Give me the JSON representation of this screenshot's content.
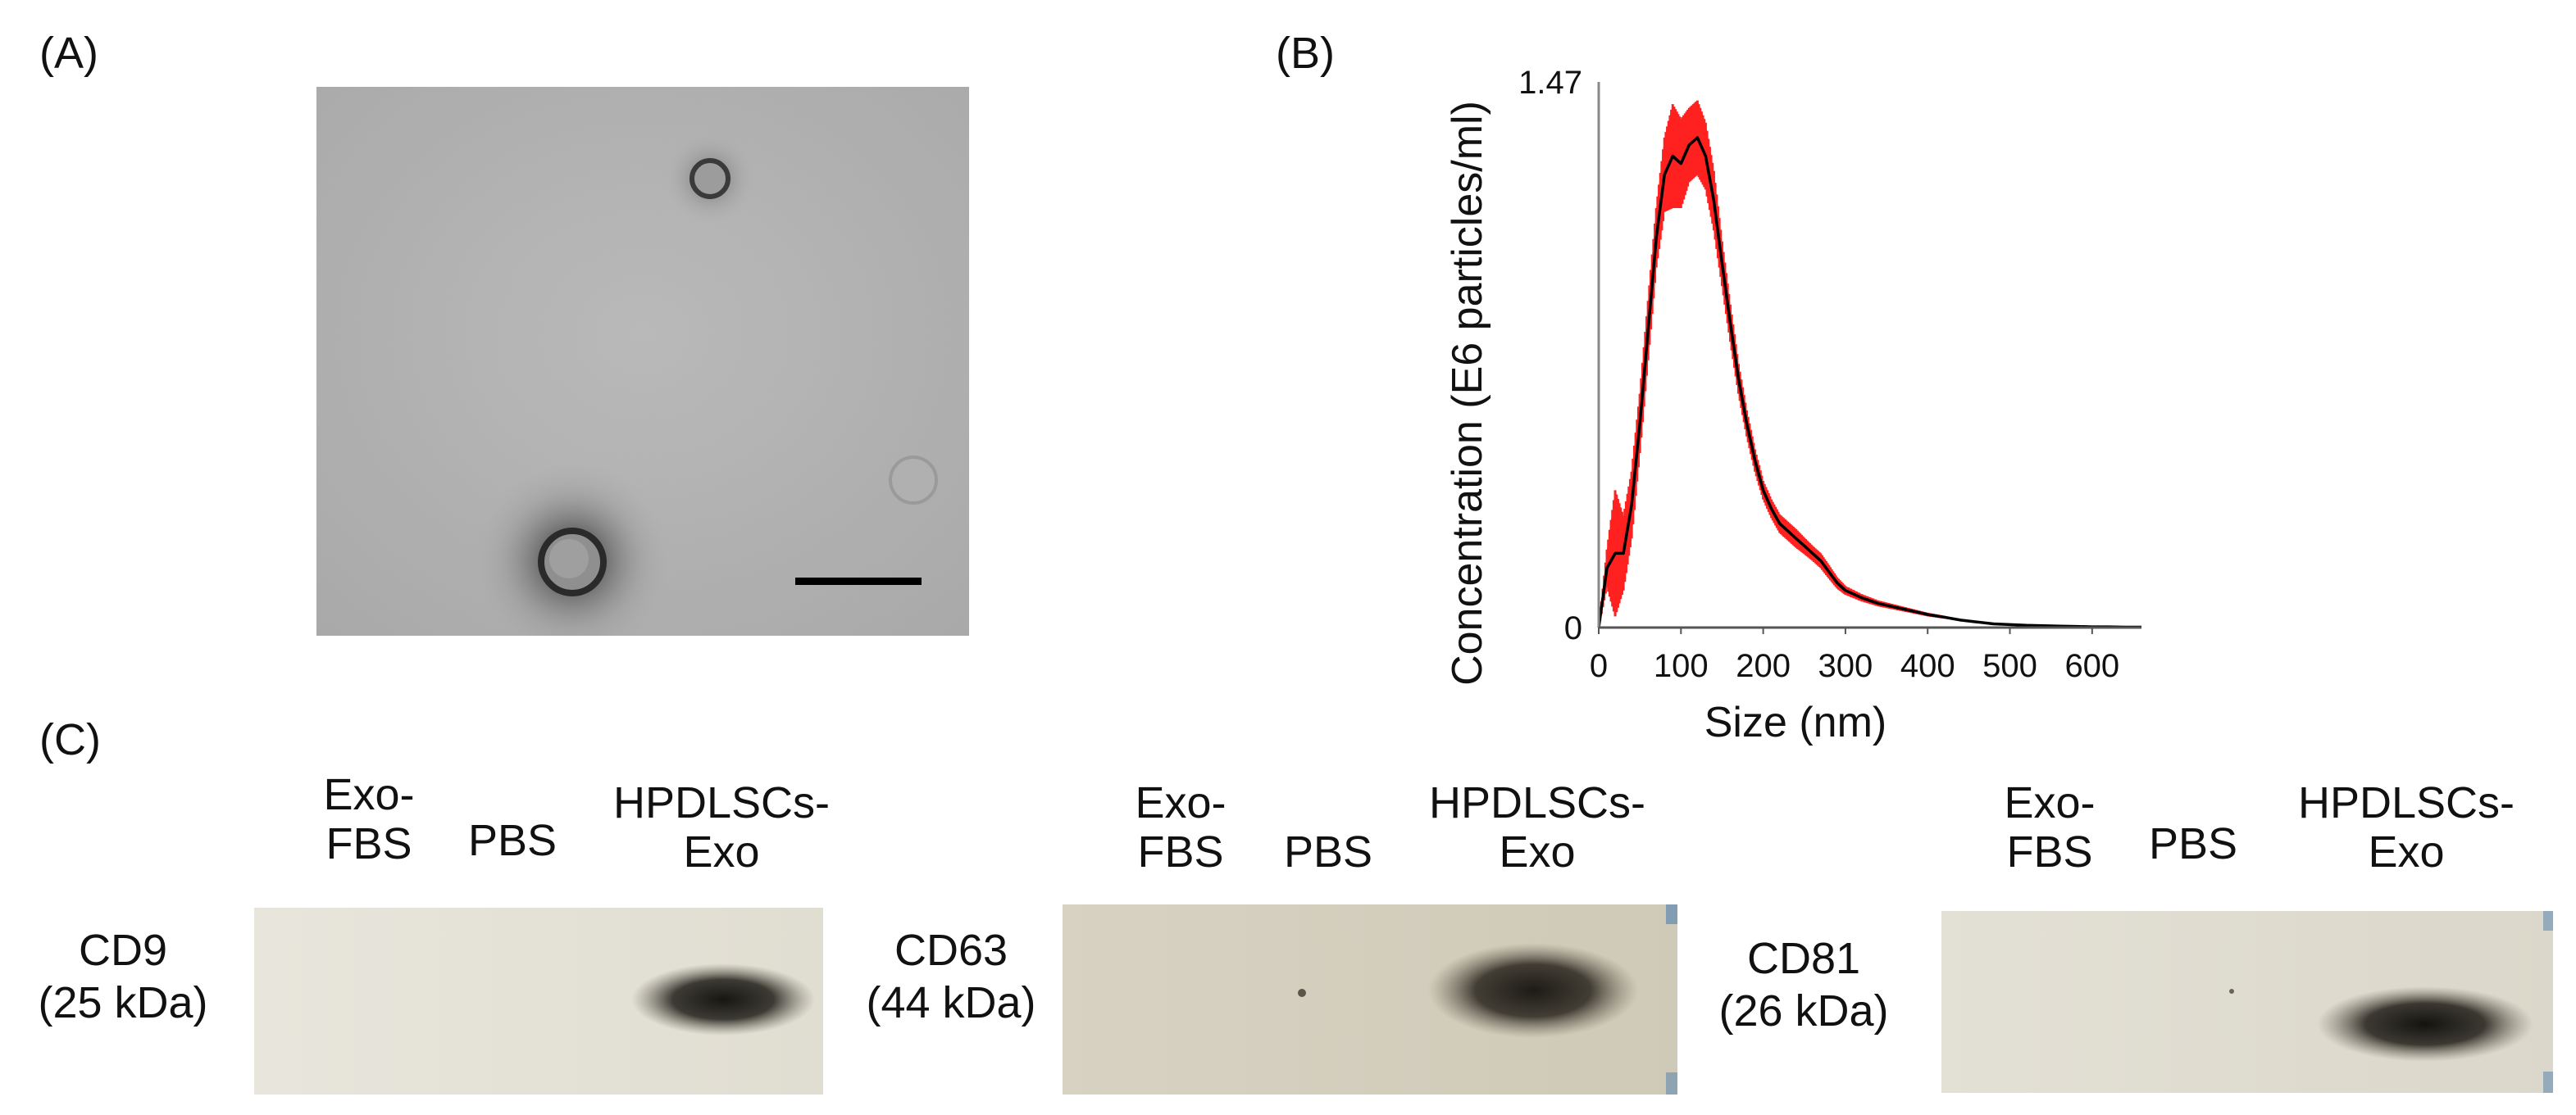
{
  "panels": {
    "a": "(A)",
    "b": "(B)",
    "c": "(C)"
  },
  "chart_data": {
    "type": "line",
    "xlabel": "Size (nm)",
    "ylabel": "Concentration (E6 particles/ml)",
    "xlim": [
      0,
      660
    ],
    "ylim": [
      0,
      1.47
    ],
    "x_ticks": [
      "0",
      "100",
      "200",
      "300",
      "400",
      "500",
      "600"
    ],
    "y_ticks": [
      "0",
      "1.47"
    ],
    "grid": false,
    "series": [
      {
        "name": "",
        "color": "#000000",
        "x": [
          0,
          10,
          20,
          30,
          40,
          50,
          60,
          70,
          80,
          90,
          100,
          110,
          120,
          130,
          140,
          150,
          160,
          170,
          180,
          190,
          200,
          210,
          220,
          230,
          240,
          250,
          260,
          270,
          280,
          290,
          300,
          320,
          340,
          360,
          380,
          400,
          420,
          440,
          460,
          480,
          500,
          520,
          540,
          560,
          580,
          600,
          620,
          640,
          660
        ],
        "y": [
          0.0,
          0.16,
          0.2,
          0.2,
          0.33,
          0.55,
          0.8,
          1.05,
          1.22,
          1.27,
          1.25,
          1.3,
          1.32,
          1.27,
          1.15,
          0.98,
          0.82,
          0.67,
          0.55,
          0.45,
          0.37,
          0.32,
          0.28,
          0.26,
          0.24,
          0.22,
          0.2,
          0.18,
          0.15,
          0.12,
          0.1,
          0.08,
          0.065,
          0.055,
          0.045,
          0.035,
          0.028,
          0.02,
          0.015,
          0.01,
          0.008,
          0.006,
          0.005,
          0.004,
          0.003,
          0.002,
          0.002,
          0.001,
          0.001
        ]
      }
    ],
    "error_band": {
      "color": "#ff2020",
      "amplitude": [
        0,
        0.05,
        0.17,
        0.1,
        0.09,
        0.08,
        0.08,
        0.08,
        0.1,
        0.14,
        0.12,
        0.1,
        0.1,
        0.09,
        0.08,
        0.06,
        0.05,
        0.04,
        0.035,
        0.03,
        0.025,
        0.025,
        0.025,
        0.025,
        0.025,
        0.022,
        0.02,
        0.02,
        0.018,
        0.015,
        0.012,
        0.01,
        0.008,
        0.007,
        0.006,
        0.005,
        0.004,
        0.003,
        0.003,
        0.002,
        0.002,
        0.002,
        0.001,
        0.001,
        0.001,
        0.001,
        0.001,
        0.001,
        0.001
      ]
    }
  },
  "western_blot": {
    "lanes": [
      {
        "line1": "Exo-",
        "line2": "FBS"
      },
      {
        "line1": "PBS"
      },
      {
        "line1": "HPDLSCs-",
        "line2": "Exo"
      }
    ],
    "markers": [
      {
        "name": "CD9",
        "weight": "(25 kDa)"
      },
      {
        "name": "CD63",
        "weight": "(44 kDa)"
      },
      {
        "name": "CD81",
        "weight": "(26 kDa)"
      }
    ]
  }
}
